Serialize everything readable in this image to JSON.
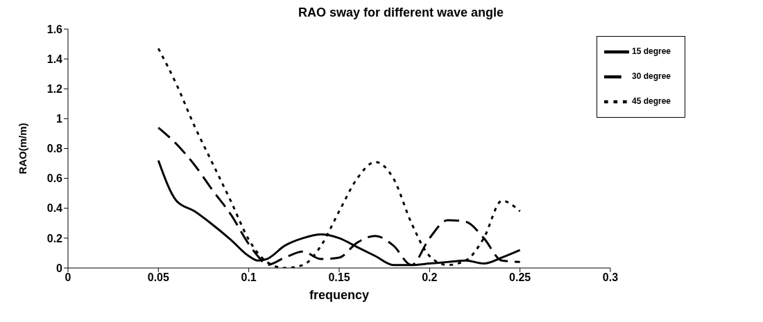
{
  "chart_data": {
    "type": "line",
    "title": "RAO sway for different wave angle",
    "xlabel": "frequency",
    "ylabel": "RAO(m/m)",
    "x": [
      0.05,
      0.06,
      0.07,
      0.08,
      0.09,
      0.1,
      0.105,
      0.11,
      0.12,
      0.13,
      0.14,
      0.15,
      0.16,
      0.17,
      0.18,
      0.19,
      0.2,
      0.21,
      0.22,
      0.23,
      0.24,
      0.25
    ],
    "series": [
      {
        "name": "15 degree",
        "color": "#000000",
        "line_style": "solid",
        "values": [
          0.72,
          0.45,
          0.38,
          0.29,
          0.19,
          0.08,
          0.05,
          0.06,
          0.15,
          0.2,
          0.225,
          0.2,
          0.14,
          0.08,
          0.02,
          0.02,
          0.03,
          0.04,
          0.05,
          0.03,
          0.07,
          0.12
        ]
      },
      {
        "name": "30 degree",
        "color": "#000000",
        "line_style": "dashed",
        "values": [
          0.94,
          0.83,
          0.69,
          0.52,
          0.36,
          0.16,
          0.08,
          0.02,
          0.07,
          0.11,
          0.06,
          0.07,
          0.17,
          0.215,
          0.15,
          0.02,
          0.2,
          0.32,
          0.31,
          0.2,
          0.05,
          0.04
        ]
      },
      {
        "name": "45 degree",
        "color": "#000000",
        "line_style": "dotted",
        "values": [
          1.47,
          1.23,
          0.95,
          0.7,
          0.45,
          0.19,
          0.1,
          0.04,
          0.0,
          0.02,
          0.15,
          0.38,
          0.6,
          0.71,
          0.6,
          0.3,
          0.08,
          0.02,
          0.05,
          0.2,
          0.45,
          0.38
        ]
      }
    ],
    "xlim": [
      0,
      0.3
    ],
    "xticks": [
      0,
      0.05,
      0.1,
      0.15,
      0.2,
      0.25,
      0.3
    ],
    "ylim": [
      0,
      1.6
    ],
    "yticks": [
      0,
      0.2,
      0.4,
      0.6,
      0.8,
      1,
      1.2,
      1.4,
      1.6
    ],
    "grid": false,
    "legend": "top right",
    "marker": "none"
  }
}
